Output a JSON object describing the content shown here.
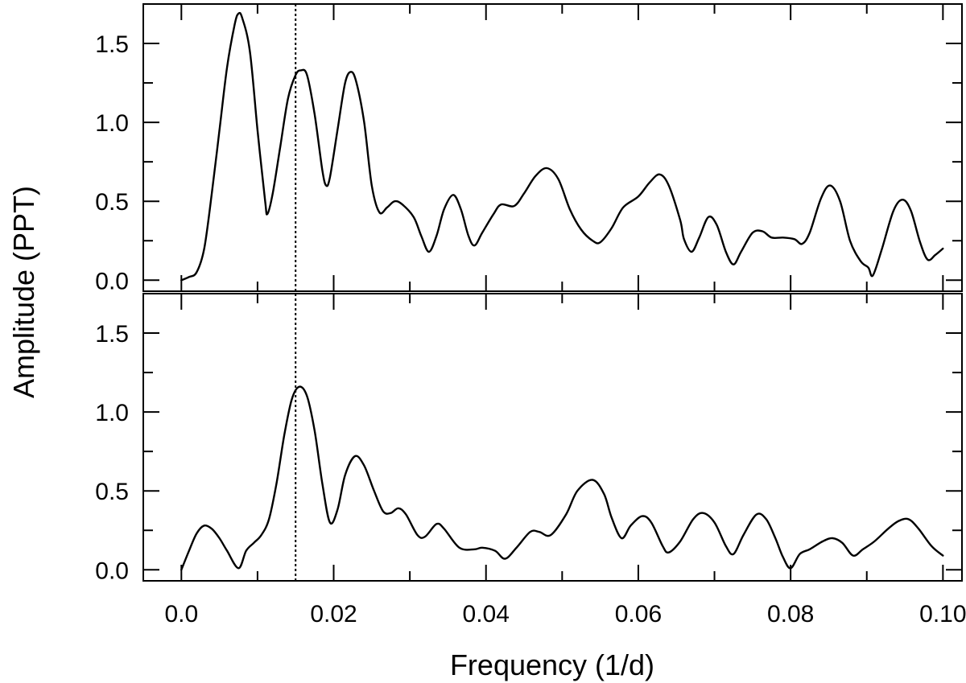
{
  "chart_data": {
    "type": "line",
    "xlabel": "Frequency (1/d)",
    "ylabel": "Amplitude (PPT)",
    "x_tick_labels": [
      "0.0",
      "0.02",
      "0.04",
      "0.06",
      "0.08",
      "0.10"
    ],
    "y_tick_labels": [
      "0.0",
      "0.5",
      "1.0",
      "1.5"
    ],
    "xlim": [
      -0.005,
      0.1025
    ],
    "ylim": [
      -0.07,
      1.75
    ],
    "grid": false,
    "legend": "none",
    "marker_frequency": 0.015,
    "panels": [
      {
        "points": [
          [
            0.0,
            0.0
          ],
          [
            0.001,
            0.02
          ],
          [
            0.002,
            0.05
          ],
          [
            0.003,
            0.2
          ],
          [
            0.004,
            0.55
          ],
          [
            0.005,
            0.95
          ],
          [
            0.006,
            1.35
          ],
          [
            0.007,
            1.62
          ],
          [
            0.0075,
            1.69
          ],
          [
            0.008,
            1.66
          ],
          [
            0.009,
            1.45
          ],
          [
            0.01,
            0.95
          ],
          [
            0.011,
            0.5
          ],
          [
            0.0113,
            0.42
          ],
          [
            0.012,
            0.55
          ],
          [
            0.013,
            0.85
          ],
          [
            0.014,
            1.15
          ],
          [
            0.015,
            1.3
          ],
          [
            0.0157,
            1.33
          ],
          [
            0.0165,
            1.3
          ],
          [
            0.0175,
            1.05
          ],
          [
            0.0185,
            0.7
          ],
          [
            0.019,
            0.6
          ],
          [
            0.0195,
            0.65
          ],
          [
            0.0205,
            0.95
          ],
          [
            0.0215,
            1.25
          ],
          [
            0.0223,
            1.32
          ],
          [
            0.023,
            1.25
          ],
          [
            0.024,
            1.0
          ],
          [
            0.025,
            0.6
          ],
          [
            0.026,
            0.43
          ],
          [
            0.027,
            0.46
          ],
          [
            0.028,
            0.5
          ],
          [
            0.029,
            0.48
          ],
          [
            0.0305,
            0.4
          ],
          [
            0.0315,
            0.28
          ],
          [
            0.0325,
            0.18
          ],
          [
            0.0335,
            0.28
          ],
          [
            0.0345,
            0.45
          ],
          [
            0.0357,
            0.54
          ],
          [
            0.0367,
            0.45
          ],
          [
            0.0377,
            0.28
          ],
          [
            0.0385,
            0.22
          ],
          [
            0.0395,
            0.3
          ],
          [
            0.041,
            0.42
          ],
          [
            0.042,
            0.48
          ],
          [
            0.0437,
            0.47
          ],
          [
            0.045,
            0.55
          ],
          [
            0.0465,
            0.66
          ],
          [
            0.048,
            0.71
          ],
          [
            0.0495,
            0.64
          ],
          [
            0.051,
            0.45
          ],
          [
            0.0525,
            0.32
          ],
          [
            0.054,
            0.25
          ],
          [
            0.055,
            0.24
          ],
          [
            0.0565,
            0.33
          ],
          [
            0.058,
            0.46
          ],
          [
            0.06,
            0.53
          ],
          [
            0.0615,
            0.62
          ],
          [
            0.0628,
            0.67
          ],
          [
            0.064,
            0.6
          ],
          [
            0.0655,
            0.38
          ],
          [
            0.066,
            0.26
          ],
          [
            0.067,
            0.18
          ],
          [
            0.068,
            0.27
          ],
          [
            0.0692,
            0.4
          ],
          [
            0.0703,
            0.35
          ],
          [
            0.0715,
            0.18
          ],
          [
            0.0725,
            0.1
          ],
          [
            0.0735,
            0.18
          ],
          [
            0.075,
            0.3
          ],
          [
            0.0763,
            0.31
          ],
          [
            0.0775,
            0.27
          ],
          [
            0.079,
            0.27
          ],
          [
            0.0805,
            0.26
          ],
          [
            0.0815,
            0.23
          ],
          [
            0.0825,
            0.3
          ],
          [
            0.084,
            0.52
          ],
          [
            0.0852,
            0.6
          ],
          [
            0.0865,
            0.5
          ],
          [
            0.0878,
            0.25
          ],
          [
            0.0892,
            0.12
          ],
          [
            0.0902,
            0.08
          ],
          [
            0.0908,
            0.03
          ],
          [
            0.092,
            0.2
          ],
          [
            0.0935,
            0.44
          ],
          [
            0.0947,
            0.51
          ],
          [
            0.0958,
            0.44
          ],
          [
            0.097,
            0.24
          ],
          [
            0.098,
            0.13
          ],
          [
            0.099,
            0.16
          ],
          [
            0.1,
            0.2
          ]
        ]
      },
      {
        "points": [
          [
            0.0,
            0.0
          ],
          [
            0.001,
            0.12
          ],
          [
            0.002,
            0.23
          ],
          [
            0.003,
            0.28
          ],
          [
            0.004,
            0.26
          ],
          [
            0.005,
            0.2
          ],
          [
            0.006,
            0.12
          ],
          [
            0.0075,
            0.01
          ],
          [
            0.0085,
            0.12
          ],
          [
            0.0095,
            0.17
          ],
          [
            0.0105,
            0.22
          ],
          [
            0.0115,
            0.32
          ],
          [
            0.0125,
            0.55
          ],
          [
            0.0135,
            0.85
          ],
          [
            0.0145,
            1.08
          ],
          [
            0.0155,
            1.16
          ],
          [
            0.0165,
            1.1
          ],
          [
            0.0175,
            0.88
          ],
          [
            0.0185,
            0.55
          ],
          [
            0.0195,
            0.3
          ],
          [
            0.0205,
            0.38
          ],
          [
            0.0215,
            0.6
          ],
          [
            0.0228,
            0.72
          ],
          [
            0.024,
            0.66
          ],
          [
            0.0253,
            0.5
          ],
          [
            0.0265,
            0.37
          ],
          [
            0.0275,
            0.36
          ],
          [
            0.0285,
            0.39
          ],
          [
            0.0295,
            0.35
          ],
          [
            0.031,
            0.22
          ],
          [
            0.032,
            0.21
          ],
          [
            0.0335,
            0.29
          ],
          [
            0.0345,
            0.26
          ],
          [
            0.0365,
            0.14
          ],
          [
            0.0385,
            0.13
          ],
          [
            0.0395,
            0.14
          ],
          [
            0.0412,
            0.12
          ],
          [
            0.0425,
            0.07
          ],
          [
            0.044,
            0.14
          ],
          [
            0.0458,
            0.24
          ],
          [
            0.047,
            0.24
          ],
          [
            0.0485,
            0.22
          ],
          [
            0.0505,
            0.35
          ],
          [
            0.052,
            0.5
          ],
          [
            0.054,
            0.57
          ],
          [
            0.0555,
            0.48
          ],
          [
            0.0565,
            0.33
          ],
          [
            0.0578,
            0.2
          ],
          [
            0.059,
            0.28
          ],
          [
            0.0605,
            0.34
          ],
          [
            0.0617,
            0.3
          ],
          [
            0.0632,
            0.15
          ],
          [
            0.064,
            0.11
          ],
          [
            0.0655,
            0.18
          ],
          [
            0.0672,
            0.32
          ],
          [
            0.0685,
            0.36
          ],
          [
            0.07,
            0.3
          ],
          [
            0.0715,
            0.15
          ],
          [
            0.0725,
            0.1
          ],
          [
            0.0738,
            0.22
          ],
          [
            0.0755,
            0.35
          ],
          [
            0.0768,
            0.32
          ],
          [
            0.078,
            0.2
          ],
          [
            0.079,
            0.08
          ],
          [
            0.08,
            0.01
          ],
          [
            0.0812,
            0.1
          ],
          [
            0.0825,
            0.13
          ],
          [
            0.0842,
            0.18
          ],
          [
            0.0855,
            0.2
          ],
          [
            0.0868,
            0.17
          ],
          [
            0.0882,
            0.09
          ],
          [
            0.0895,
            0.13
          ],
          [
            0.091,
            0.18
          ],
          [
            0.0928,
            0.26
          ],
          [
            0.0942,
            0.31
          ],
          [
            0.0955,
            0.32
          ],
          [
            0.0968,
            0.26
          ],
          [
            0.0985,
            0.15
          ],
          [
            0.1,
            0.09
          ]
        ]
      }
    ]
  }
}
